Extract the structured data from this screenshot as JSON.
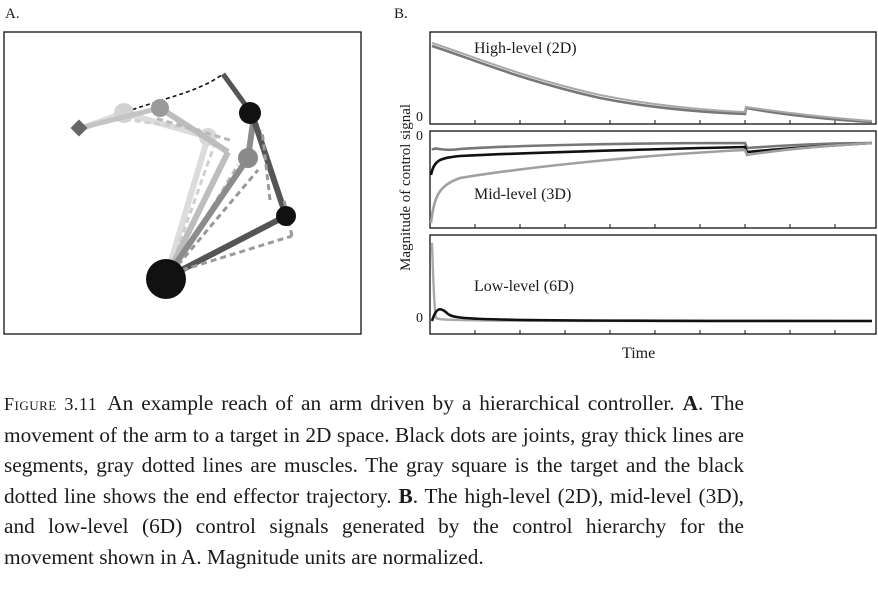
{
  "panel_a": {
    "letter": "A."
  },
  "panel_b": {
    "letter": "B.",
    "ylabel": "Magnitude of control signal",
    "xlabel": "Time",
    "zero_tick": "0",
    "subplots": [
      {
        "label": "High-level (2D)"
      },
      {
        "label": "Mid-level (3D)"
      },
      {
        "label": "Low-level (6D)"
      }
    ]
  },
  "caption": {
    "figure_label": "Figure 3.11",
    "intro": "An example reach of an arm driven by a hierarchical controller.",
    "a_letter": "A",
    "a_text": ". The movement of the arm to a target in 2D space. Black dots are joints, gray thick lines are segments, gray dotted lines are muscles. The gray square is the target and the black dotted line shows the end effector trajectory.",
    "b_letter": "B",
    "b_text": ". The high-level (2D), mid-level (3D), and low-level (6D) control signals generated by the control hierarchy for the movement shown in A. Magnitude units are normalized."
  },
  "colors": {
    "black": "#111111",
    "dark_gray": "#555555",
    "mid_gray": "#888888",
    "light_gray": "#b5b5b5",
    "lighter_gray": "#d0d0d0"
  }
}
